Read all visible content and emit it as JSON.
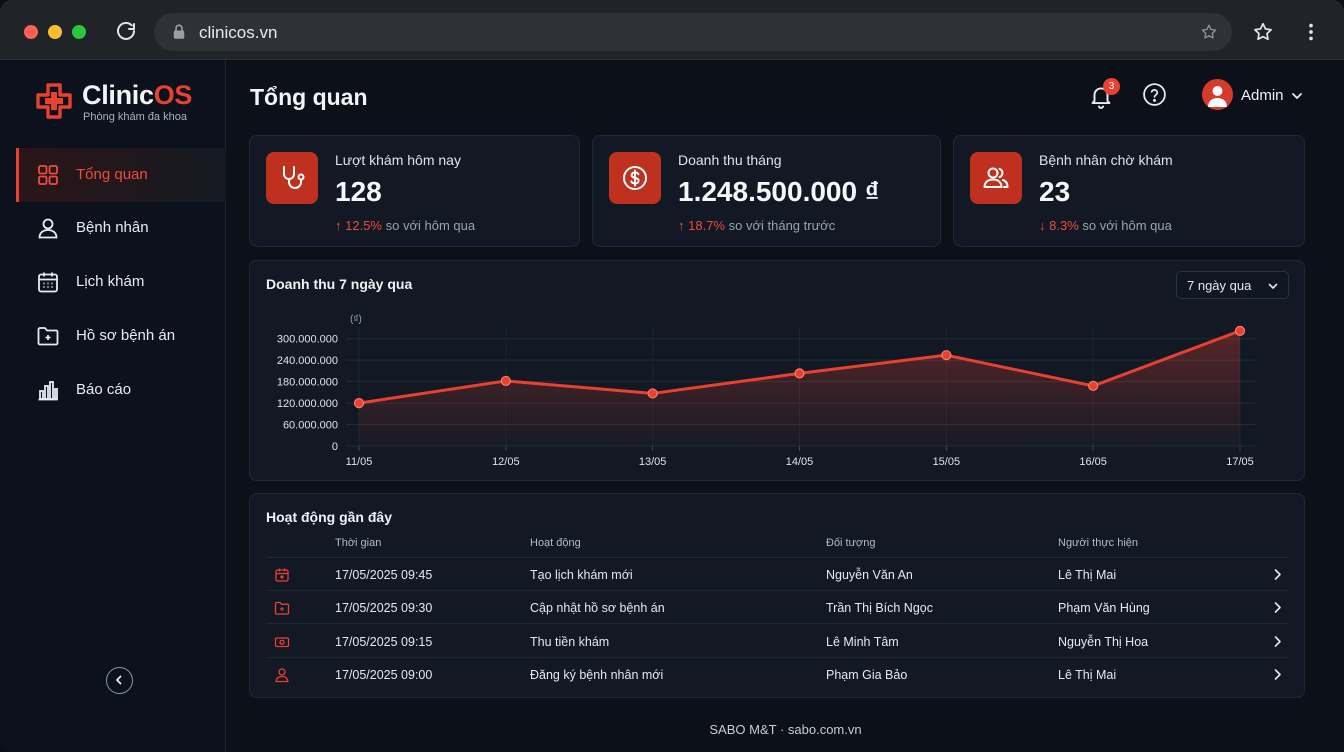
{
  "browser": {
    "url": "clinicos.vn"
  },
  "brand": {
    "name_prefix": "Clinic",
    "name_suffix": "OS",
    "tagline": "Phòng khám đa khoa",
    "accent": "#e8412f"
  },
  "sidebar": {
    "items": [
      {
        "label": "Tổng quan",
        "icon": "grid-icon",
        "active": true
      },
      {
        "label": "Bệnh nhân",
        "icon": "user-icon"
      },
      {
        "label": "Lịch khám",
        "icon": "calendar-icon"
      },
      {
        "label": "Hồ sơ bệnh án",
        "icon": "folder-icon"
      },
      {
        "label": "Báo cáo",
        "icon": "bar-chart-icon"
      }
    ]
  },
  "header": {
    "title": "Tổng quan",
    "notifications": "3",
    "user": "Admin"
  },
  "stats": [
    {
      "label": "Lượt khám hôm nay",
      "value": "128",
      "trend_pct": "12.5%",
      "trend_text": "so với hôm qua",
      "direction": "up",
      "icon": "stethoscope-icon"
    },
    {
      "label": "Doanh thu tháng",
      "value": "1.248.500.000 ₫",
      "trend_pct": "18.7%",
      "trend_text": "so với tháng trước",
      "direction": "up",
      "icon": "dollar-coin-icon"
    },
    {
      "label": "Bệnh nhân chờ khám",
      "value": "23",
      "trend_pct": "8.3%",
      "trend_text": "so với hôm qua",
      "direction": "down",
      "icon": "users-icon"
    }
  ],
  "revenue": {
    "title": "Doanh thu 7 ngày qua",
    "range": "7 ngày qua"
  },
  "chart_data": {
    "type": "area",
    "unit_label": "(₫)",
    "categories": [
      "11/05",
      "12/05",
      "13/05",
      "14/05",
      "15/05",
      "16/05",
      "17/05"
    ],
    "values": [
      120000000,
      182000000,
      147000000,
      203000000,
      254000000,
      168000000,
      322000000
    ],
    "y_ticks": [
      "0",
      "60.000.000",
      "120.000.000",
      "180.000.000",
      "240.000.000",
      "300.000.000"
    ],
    "ylim": [
      0,
      330000000
    ],
    "color": "#e8412f",
    "grid": true
  },
  "activity": {
    "title": "Hoạt động gần đây",
    "columns": [
      "Thời gian",
      "Hoạt động",
      "Đối tượng",
      "Người thực hiện"
    ],
    "rows": [
      {
        "icon": "calendar-icon",
        "time": "17/05/2025 09:45",
        "action": "Tạo lịch khám mới",
        "target": "Nguyễn Văn An",
        "by": "Lê Thị Mai"
      },
      {
        "icon": "folder-icon",
        "time": "17/05/2025 09:30",
        "action": "Cập nhật hồ sơ bệnh án",
        "target": "Trần Thị Bích Ngọc",
        "by": "Phạm Văn Hùng"
      },
      {
        "icon": "cash-icon",
        "time": "17/05/2025 09:15",
        "action": "Thu tiền khám",
        "target": "Lê Minh Tâm",
        "by": "Nguyễn Thị Hoa"
      },
      {
        "icon": "user-icon",
        "time": "17/05/2025 09:00",
        "action": "Đăng ký bệnh nhân mới",
        "target": "Phạm Gia Bảo",
        "by": "Lê Thị Mai"
      }
    ]
  },
  "footer": {
    "text": "SABO M&T · sabo.com.vn"
  }
}
